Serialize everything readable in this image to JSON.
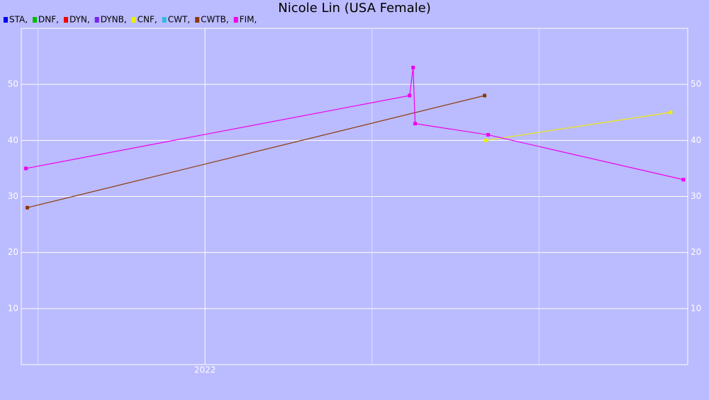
{
  "chart_data": {
    "type": "line",
    "title": "Nicole Lin (USA Female)",
    "xlim": [
      2020.9,
      2024.89
    ],
    "xticks": [
      {
        "value": 2021,
        "label": null
      },
      2022,
      {
        "value": 2023,
        "label": null
      },
      {
        "value": 2024,
        "label": null
      }
    ],
    "ylim": [
      0,
      60
    ],
    "yticks": [
      10,
      20,
      30,
      40,
      50
    ],
    "grid": true,
    "series": [
      {
        "name": "STA,",
        "color": "#0000ee",
        "x": [],
        "values": []
      },
      {
        "name": "DNF,",
        "color": "#00bb00",
        "x": [],
        "values": []
      },
      {
        "name": "DYN,",
        "color": "#ee0000",
        "x": [],
        "values": []
      },
      {
        "name": "DYNB,",
        "color": "#7722ee",
        "x": [],
        "values": []
      },
      {
        "name": "CNF,",
        "color": "#eeee00",
        "x": [
          2023.682,
          2024.788
        ],
        "values": [
          40,
          45
        ]
      },
      {
        "name": "CWT,",
        "color": "#33bbdd",
        "x": [],
        "values": []
      },
      {
        "name": "CWTB,",
        "color": "#8b3a0a",
        "x": [
          2020.936,
          2023.674
        ],
        "values": [
          28,
          48
        ]
      },
      {
        "name": "FIM,",
        "color": "#ee00ee",
        "x": [
          2020.928,
          2023.225,
          2023.246,
          2023.258,
          2023.695,
          2024.864
        ],
        "values": [
          35,
          48,
          53,
          43,
          41,
          33
        ]
      }
    ]
  }
}
